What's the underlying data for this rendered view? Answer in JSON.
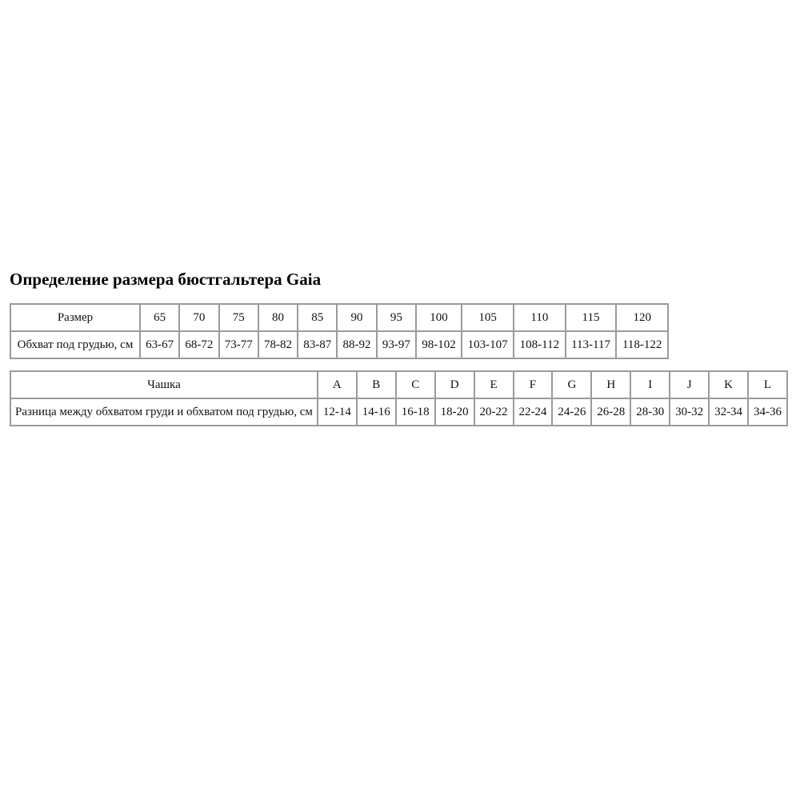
{
  "page": {
    "title": "Определение размера бюстгальтера Gaia"
  },
  "size_table": {
    "row1_label": "Размер",
    "row2_label": "Обхват под грудью, см",
    "sizes": [
      "65",
      "70",
      "75",
      "80",
      "85",
      "90",
      "95",
      "100",
      "105",
      "110",
      "115",
      "120"
    ],
    "underbust_ranges": [
      "63-67",
      "68-72",
      "73-77",
      "78-82",
      "83-87",
      "88-92",
      "93-97",
      "98-102",
      "103-107",
      "108-112",
      "113-117",
      "118-122"
    ]
  },
  "cup_table": {
    "row1_label": "Чашка",
    "row2_label": "Разница между обхватом груди и обхватом под грудью, см",
    "cups": [
      "A",
      "B",
      "C",
      "D",
      "E",
      "F",
      "G",
      "H",
      "I",
      "J",
      "K",
      "L"
    ],
    "differences": [
      "12-14",
      "14-16",
      "16-18",
      "18-20",
      "20-22",
      "22-24",
      "24-26",
      "26-28",
      "28-30",
      "30-32",
      "32-34",
      "34-36"
    ]
  },
  "colors": {
    "background": "#ffffff",
    "border": "#9b9b9b",
    "text": "#111111",
    "title_text": "#000000"
  }
}
